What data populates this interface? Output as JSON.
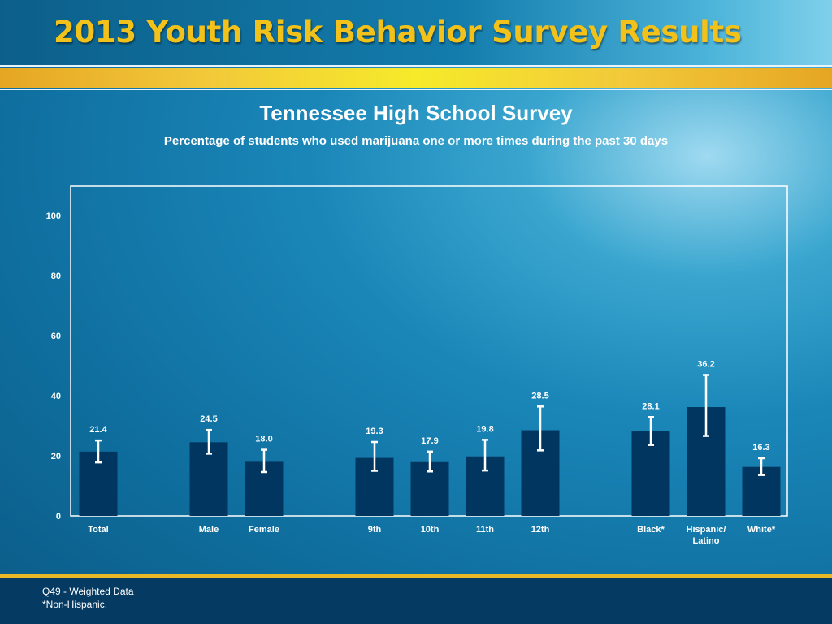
{
  "slide": {
    "title": "2013 Youth Risk Behavior Survey Results",
    "footnotes": [
      "Q49 - Weighted Data",
      "*Non-Hispanic."
    ]
  },
  "colors": {
    "title_gold": "#f2c21a",
    "bar": "#00365f",
    "error_bar": "#ffffff",
    "label": "#ffffff"
  },
  "chart_data": {
    "type": "bar",
    "title": "Tennessee High School Survey",
    "subtitle": "Percentage of students who used marijuana one or more times during the past 30 days",
    "categories": [
      "Total",
      "Male",
      "Female",
      "9th",
      "10th",
      "11th",
      "12th",
      "Black*",
      "Hispanic/\nLatino",
      "White*"
    ],
    "groups": [
      [
        "Total"
      ],
      [
        "Male",
        "Female"
      ],
      [
        "9th",
        "10th",
        "11th",
        "12th"
      ],
      [
        "Black*",
        "Hispanic/\nLatino",
        "White*"
      ]
    ],
    "values": [
      21.4,
      24.5,
      18.0,
      19.3,
      17.9,
      19.8,
      28.5,
      28.1,
      36.2,
      16.3
    ],
    "value_labels": [
      "21.4",
      "24.5",
      "18.0",
      "19.3",
      "17.9",
      "19.8",
      "28.5",
      "28.1",
      "36.2",
      "16.3"
    ],
    "ci_lower": [
      17.8,
      20.7,
      14.6,
      15.0,
      14.8,
      15.1,
      21.8,
      23.6,
      26.6,
      13.6
    ],
    "ci_upper": [
      25.1,
      28.6,
      22.0,
      24.6,
      21.4,
      25.3,
      36.4,
      32.9,
      46.9,
      19.2
    ],
    "yticks": [
      0,
      20,
      40,
      60,
      80,
      100
    ],
    "ylim": [
      0,
      110
    ],
    "grid": false,
    "legend": "none"
  }
}
